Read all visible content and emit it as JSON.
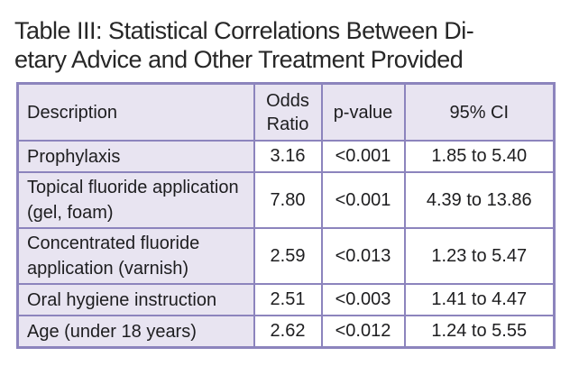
{
  "title": {
    "line1": "Table III: Statistical Correlations Between Di-",
    "line2": "etary Advice and Other Treatment Provided"
  },
  "table": {
    "headers": {
      "description": "Description",
      "odds_ratio": "Odds Ratio",
      "p_value": "p-value",
      "ci": "95% CI"
    },
    "rows": [
      {
        "description": "Prophylaxis",
        "odds_ratio": "3.16",
        "p_value": "<0.001",
        "ci": "1.85 to 5.40"
      },
      {
        "description": "Topical fluoride application (gel, foam)",
        "odds_ratio": "7.80",
        "p_value": "<0.001",
        "ci": "4.39 to 13.86"
      },
      {
        "description": "Concentrated fluoride application (varnish)",
        "odds_ratio": "2.59",
        "p_value": "<0.013",
        "ci": "1.23 to 5.47"
      },
      {
        "description": "Oral hygiene instruction",
        "odds_ratio": "2.51",
        "p_value": "<0.003",
        "ci": "1.41 to 4.47"
      },
      {
        "description": "Age (under 18 years)",
        "odds_ratio": "2.62",
        "p_value": "<0.012",
        "ci": "1.24 to 5.55"
      }
    ]
  },
  "colors": {
    "cell_lavender": "#e8e4f1",
    "table_border": "#8c84bd",
    "text": "#1d1d1f",
    "background": "#ffffff"
  },
  "chart_data": {
    "type": "table",
    "title": "Table III: Statistical Correlations Between Dietary Advice and Other Treatment Provided",
    "columns": [
      "Description",
      "Odds Ratio",
      "p-value",
      "95% CI"
    ],
    "rows": [
      [
        "Prophylaxis",
        "3.16",
        "<0.001",
        "1.85 to 5.40"
      ],
      [
        "Topical fluoride application (gel, foam)",
        "7.80",
        "<0.001",
        "4.39 to 13.86"
      ],
      [
        "Concentrated fluoride application (varnish)",
        "2.59",
        "<0.013",
        "1.23 to 5.47"
      ],
      [
        "Oral hygiene instruction",
        "2.51",
        "<0.003",
        "1.41 to 4.47"
      ],
      [
        "Age (under 18 years)",
        "2.62",
        "<0.012",
        "1.24 to 5.55"
      ]
    ]
  }
}
